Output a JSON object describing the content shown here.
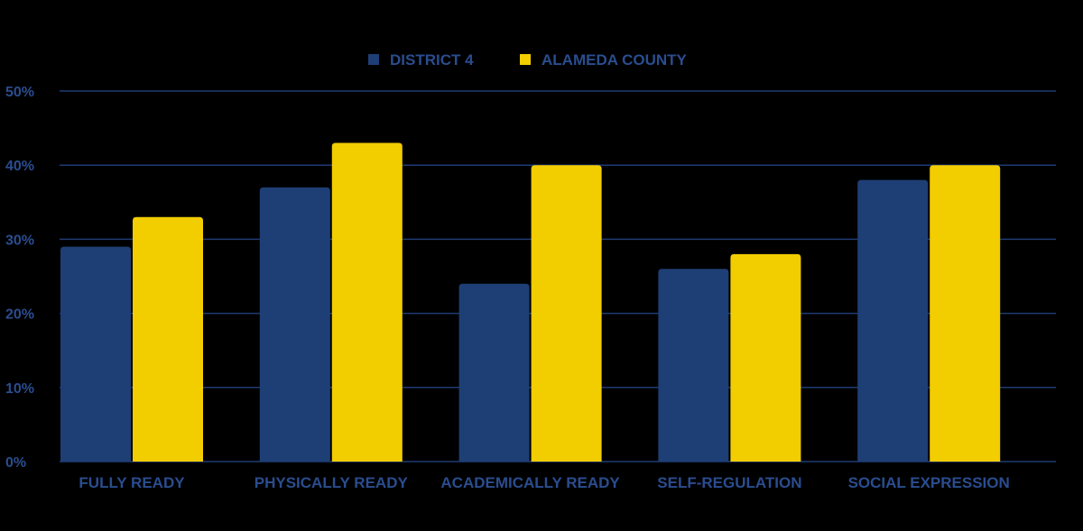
{
  "colors": {
    "background": "#000000",
    "district": "#1e3f75",
    "county": "#f2cd00",
    "text": "#2a4d8f",
    "grid": "#1f3a73"
  },
  "chart_data": {
    "type": "bar",
    "title": "",
    "xlabel": "",
    "ylabel": "",
    "ylim": [
      0,
      50
    ],
    "yticks": [
      0,
      10,
      20,
      30,
      40,
      50
    ],
    "ytick_labels": [
      "0%",
      "10%",
      "20%",
      "30%",
      "40%",
      "50%"
    ],
    "grid": true,
    "legend_position": "top-center",
    "categories": [
      "FULLY READY",
      "PHYSICALLY READY",
      "ACADEMICALLY READY",
      "SELF-REGULATION",
      "SOCIAL EXPRESSION"
    ],
    "series": [
      {
        "name": "DISTRICT 4",
        "values": [
          29,
          37,
          24,
          26,
          38
        ]
      },
      {
        "name": "ALAMEDA COUNTY",
        "values": [
          33,
          43,
          40,
          28,
          40
        ]
      }
    ]
  }
}
